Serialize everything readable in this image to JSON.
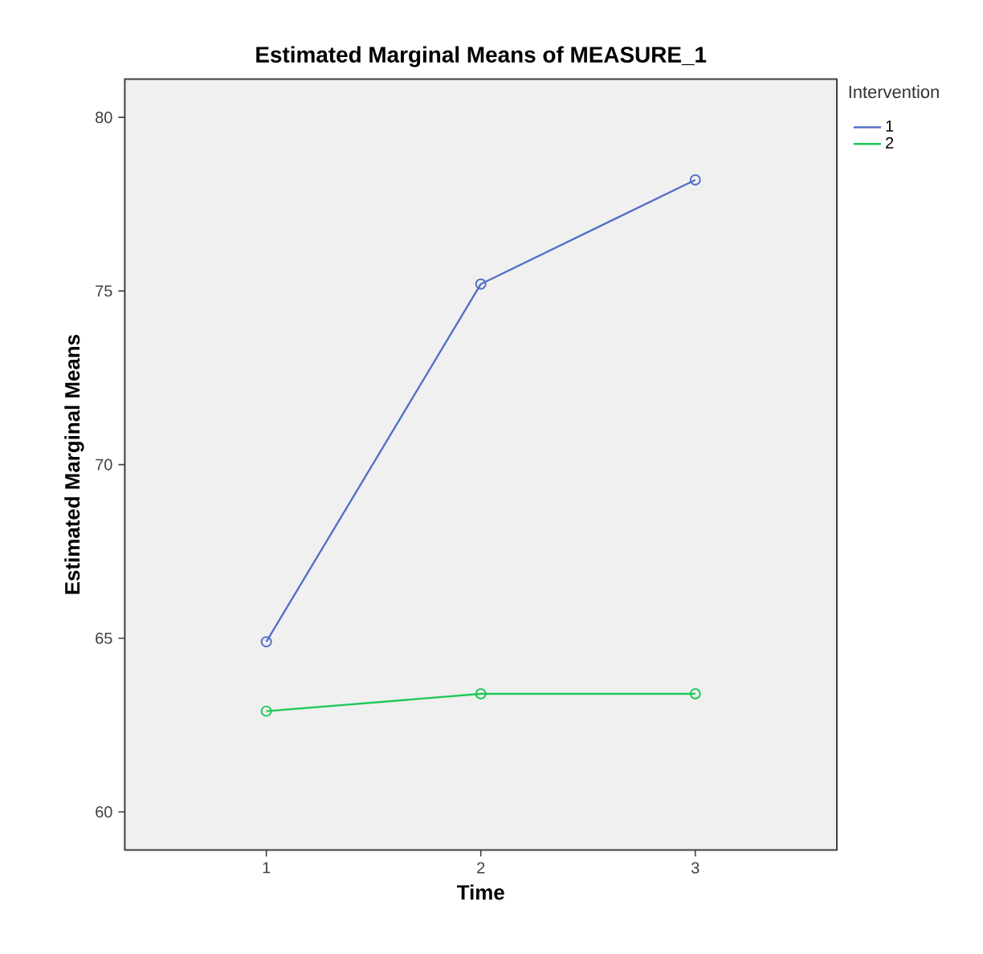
{
  "chart_data": {
    "type": "line",
    "title": "Estimated Marginal Means of MEASURE_1",
    "xlabel": "Time",
    "ylabel": "Estimated Marginal Means",
    "legend_title": "Intervention",
    "x": [
      1,
      2,
      3
    ],
    "series": [
      {
        "name": "1",
        "color": "#5470c6",
        "values": [
          64.9,
          75.2,
          78.2
        ]
      },
      {
        "name": "2",
        "color": "#1ec85a",
        "values": [
          62.9,
          63.4,
          63.4
        ]
      }
    ],
    "xlim": [
      0.34,
      3.66
    ],
    "ylim": [
      58.9,
      81.1
    ],
    "xticks": [
      1,
      2,
      3
    ],
    "yticks": [
      60,
      65,
      70,
      75,
      80
    ],
    "grid": false,
    "legend": "top right",
    "marker": "circle",
    "line_style": "solid"
  }
}
